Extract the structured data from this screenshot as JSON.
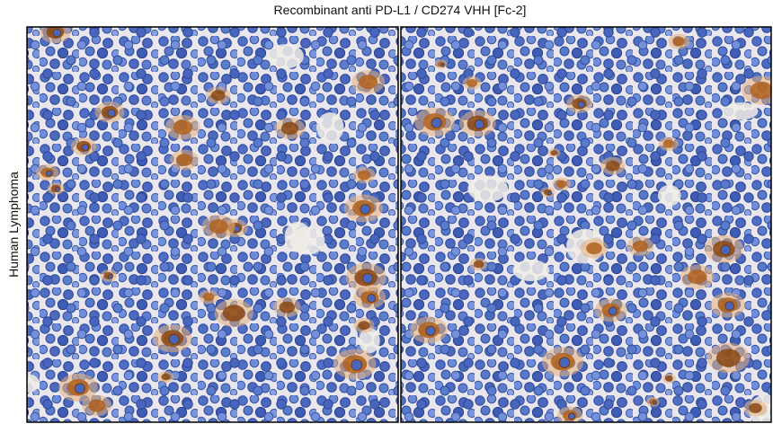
{
  "title": "Recombinant anti PD-L1 / CD274 VHH [Fc-2]",
  "row_label": "Human Lymphoma"
}
